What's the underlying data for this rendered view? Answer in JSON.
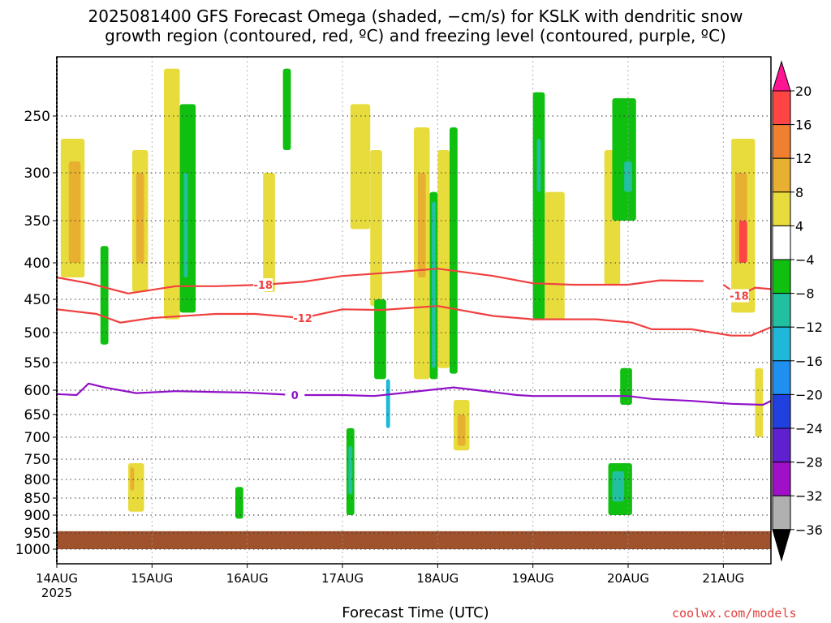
{
  "title_line1": "2025081400 GFS Forecast Omega (shaded, −cm/s) for KSLK with dendritic snow",
  "title_line2": "growth region (contoured, red, ºC) and freezing level (contoured, purple, ºC)",
  "x_axis_title": "Forecast Time (UTC)",
  "credit": "coolwx.com/models",
  "chart_data": {
    "type": "heatmap",
    "title": "2025081400 GFS Forecast Omega (shaded, −cm/s) for KSLK with dendritic snow growth region (contoured, red, ºC) and freezing level (contoured, purple, ºC)",
    "xlabel": "Forecast Time (UTC)",
    "ylabel": "",
    "x_range_hours": [
      0,
      180
    ],
    "y_ticks": [
      250,
      300,
      350,
      400,
      450,
      500,
      550,
      600,
      650,
      700,
      750,
      800,
      850,
      900,
      950,
      1000
    ],
    "y_axis": "pressure (hPa), inverted, log-like",
    "x_ticks": [
      {
        "hour": 0,
        "label": "14AUG",
        "sublabel": "2025"
      },
      {
        "hour": 24,
        "label": "15AUG"
      },
      {
        "hour": 48,
        "label": "16AUG"
      },
      {
        "hour": 72,
        "label": "17AUG"
      },
      {
        "hour": 96,
        "label": "18AUG"
      },
      {
        "hour": 120,
        "label": "19AUG"
      },
      {
        "hour": 144,
        "label": "20AUG"
      },
      {
        "hour": 168,
        "label": "21AUG"
      }
    ],
    "grid": true,
    "colorbar": {
      "labels": [
        "20",
        "16",
        "12",
        "8",
        "4",
        "−4",
        "−8",
        "−12",
        "−16",
        "−20",
        "−24",
        "−28",
        "−32",
        "−36"
      ],
      "colors": [
        "#ff1493",
        "#ff4444",
        "#f08030",
        "#e8b030",
        "#e8dc3c",
        "#ffffff",
        "#10c010",
        "#20c0a0",
        "#20b8d8",
        "#2090f0",
        "#2040e0",
        "#6020d0",
        "#a010c8",
        "#b0b0b0",
        "#000000"
      ]
    },
    "contours": [
      {
        "label": "-18",
        "color": "#f04040",
        "points": [
          [
            0,
            420
          ],
          [
            8,
            428
          ],
          [
            18,
            442
          ],
          [
            30,
            432
          ],
          [
            40,
            432
          ],
          [
            52,
            430
          ],
          [
            62,
            426
          ],
          [
            72,
            418
          ],
          [
            85,
            413
          ],
          [
            96,
            408
          ],
          [
            110,
            418
          ],
          [
            120,
            428
          ],
          [
            130,
            430
          ],
          [
            144,
            430
          ],
          [
            152,
            424
          ],
          [
            163,
            425
          ]
        ]
      },
      {
        "label": "-18",
        "color": "#f04040",
        "points": [
          [
            168,
            430
          ],
          [
            172,
            445
          ],
          [
            176,
            434
          ],
          [
            180,
            436
          ]
        ]
      },
      {
        "label": "-12",
        "color": "#f04040",
        "points": [
          [
            0,
            465
          ],
          [
            10,
            472
          ],
          [
            16,
            485
          ],
          [
            24,
            478
          ],
          [
            40,
            472
          ],
          [
            50,
            472
          ],
          [
            62,
            478
          ],
          [
            72,
            465
          ],
          [
            82,
            466
          ],
          [
            96,
            460
          ],
          [
            110,
            475
          ],
          [
            120,
            480
          ],
          [
            136,
            480
          ],
          [
            145,
            485
          ],
          [
            150,
            495
          ],
          [
            160,
            495
          ],
          [
            170,
            505
          ],
          [
            175,
            505
          ],
          [
            180,
            492
          ]
        ]
      },
      {
        "label": "0",
        "color": "#9010c8",
        "points": [
          [
            0,
            608
          ],
          [
            5,
            610
          ],
          [
            8,
            588
          ],
          [
            12,
            595
          ],
          [
            20,
            606
          ],
          [
            30,
            602
          ],
          [
            48,
            605
          ],
          [
            60,
            610
          ],
          [
            72,
            610
          ],
          [
            80,
            612
          ],
          [
            88,
            605
          ],
          [
            100,
            595
          ],
          [
            106,
            600
          ],
          [
            116,
            610
          ],
          [
            120,
            612
          ],
          [
            130,
            612
          ],
          [
            144,
            612
          ],
          [
            150,
            618
          ],
          [
            160,
            622
          ],
          [
            170,
            628
          ],
          [
            178,
            630
          ],
          [
            180,
            622
          ]
        ]
      }
    ],
    "shaded_regions": [
      {
        "x0": 0,
        "x1": 180,
        "y0": 945,
        "y1": 1000,
        "level": "terrain",
        "color": "#a0522d"
      },
      {
        "x0": 1,
        "x1": 7,
        "y0": 270,
        "y1": 420,
        "level": "4 to 8",
        "color": "#e8dc3c"
      },
      {
        "x0": 3,
        "x1": 6,
        "y0": 290,
        "y1": 400,
        "level": "8 to 12",
        "color": "#e8b030"
      },
      {
        "x0": 11,
        "x1": 13,
        "y0": 380,
        "y1": 520,
        "level": "-4 to -8",
        "color": "#10c010"
      },
      {
        "x0": 19,
        "x1": 23,
        "y0": 280,
        "y1": 440,
        "level": "4 to 8",
        "color": "#e8dc3c"
      },
      {
        "x0": 20,
        "x1": 22,
        "y0": 300,
        "y1": 400,
        "level": "8 to 12",
        "color": "#e8b030"
      },
      {
        "x0": 27,
        "x1": 31,
        "y0": 210,
        "y1": 480,
        "level": "4 to 8",
        "color": "#e8dc3c"
      },
      {
        "x0": 31,
        "x1": 35,
        "y0": 240,
        "y1": 470,
        "level": "-4 to -8",
        "color": "#10c010"
      },
      {
        "x0": 32,
        "x1": 33,
        "y0": 300,
        "y1": 420,
        "level": "-8 to -12",
        "color": "#20c0a0"
      },
      {
        "x0": 52,
        "x1": 55,
        "y0": 300,
        "y1": 440,
        "level": "4 to 8",
        "color": "#e8dc3c"
      },
      {
        "x0": 57,
        "x1": 59,
        "y0": 210,
        "y1": 280,
        "level": "-4 to -8",
        "color": "#10c010"
      },
      {
        "x0": 74,
        "x1": 79,
        "y0": 240,
        "y1": 360,
        "level": "4 to 8",
        "color": "#e8dc3c"
      },
      {
        "x0": 79,
        "x1": 82,
        "y0": 280,
        "y1": 460,
        "level": "4 to 8",
        "color": "#e8dc3c"
      },
      {
        "x0": 80,
        "x1": 83,
        "y0": 450,
        "y1": 580,
        "level": "-4 to -8",
        "color": "#10c010"
      },
      {
        "x0": 90,
        "x1": 94,
        "y0": 260,
        "y1": 580,
        "level": "4 to 8",
        "color": "#e8dc3c"
      },
      {
        "x0": 91,
        "x1": 93,
        "y0": 300,
        "y1": 420,
        "level": "8 to 12",
        "color": "#e8b030"
      },
      {
        "x0": 94,
        "x1": 96,
        "y0": 320,
        "y1": 580,
        "level": "-4 to -8",
        "color": "#10c010"
      },
      {
        "x0": 94.5,
        "x1": 95.5,
        "y0": 330,
        "y1": 560,
        "level": "-8 to -12",
        "color": "#20c0a0"
      },
      {
        "x0": 96,
        "x1": 99,
        "y0": 280,
        "y1": 560,
        "level": "4 to 8",
        "color": "#e8dc3c"
      },
      {
        "x0": 99,
        "x1": 101,
        "y0": 260,
        "y1": 570,
        "level": "-4 to -8",
        "color": "#10c010"
      },
      {
        "x0": 100,
        "x1": 104,
        "y0": 620,
        "y1": 730,
        "level": "4 to 8",
        "color": "#e8dc3c"
      },
      {
        "x0": 101,
        "x1": 103,
        "y0": 650,
        "y1": 720,
        "level": "8 to 12",
        "color": "#e8b030"
      },
      {
        "x0": 73,
        "x1": 75,
        "y0": 680,
        "y1": 900,
        "level": "-4 to -8",
        "color": "#10c010"
      },
      {
        "x0": 73.5,
        "x1": 74.5,
        "y0": 720,
        "y1": 840,
        "level": "-8 to -12",
        "color": "#20c0a0"
      },
      {
        "x0": 83,
        "x1": 84,
        "y0": 580,
        "y1": 680,
        "level": "-12 to -16",
        "color": "#20b8d8"
      },
      {
        "x0": 120,
        "x1": 123,
        "y0": 230,
        "y1": 480,
        "level": "-4 to -8",
        "color": "#10c010"
      },
      {
        "x0": 121,
        "x1": 122,
        "y0": 270,
        "y1": 320,
        "level": "-8 to -12",
        "color": "#20c0a0"
      },
      {
        "x0": 123,
        "x1": 128,
        "y0": 320,
        "y1": 480,
        "level": "4 to 8",
        "color": "#e8dc3c"
      },
      {
        "x0": 138,
        "x1": 142,
        "y0": 280,
        "y1": 430,
        "level": "4 to 8",
        "color": "#e8dc3c"
      },
      {
        "x0": 140,
        "x1": 146,
        "y0": 235,
        "y1": 350,
        "level": "-4 to -8",
        "color": "#10c010"
      },
      {
        "x0": 143,
        "x1": 145,
        "y0": 290,
        "y1": 320,
        "level": "-8 to -12",
        "color": "#20c0a0"
      },
      {
        "x0": 139,
        "x1": 145,
        "y0": 760,
        "y1": 900,
        "level": "-4 to -8",
        "color": "#10c010"
      },
      {
        "x0": 140,
        "x1": 143,
        "y0": 780,
        "y1": 860,
        "level": "-8 to -12",
        "color": "#20c0a0"
      },
      {
        "x0": 142,
        "x1": 145,
        "y0": 560,
        "y1": 630,
        "level": "-4 to -8",
        "color": "#10c010"
      },
      {
        "x0": 170,
        "x1": 176,
        "y0": 270,
        "y1": 470,
        "level": "4 to 8",
        "color": "#e8dc3c"
      },
      {
        "x0": 171,
        "x1": 174,
        "y0": 300,
        "y1": 400,
        "level": "8 to 12",
        "color": "#e8b030"
      },
      {
        "x0": 172,
        "x1": 174,
        "y0": 350,
        "y1": 400,
        "level": "16 to 20",
        "color": "#ff4444"
      },
      {
        "x0": 176,
        "x1": 178,
        "y0": 560,
        "y1": 700,
        "level": "4 to 8",
        "color": "#e8dc3c"
      },
      {
        "x0": 18,
        "x1": 22,
        "y0": 760,
        "y1": 890,
        "level": "4 to 8",
        "color": "#e8dc3c"
      },
      {
        "x0": 18.5,
        "x1": 19.5,
        "y0": 770,
        "y1": 830,
        "level": "8 to 12",
        "color": "#e8b030"
      },
      {
        "x0": 45,
        "x1": 47,
        "y0": 820,
        "y1": 910,
        "level": "-4 to -8",
        "color": "#10c010"
      }
    ]
  }
}
